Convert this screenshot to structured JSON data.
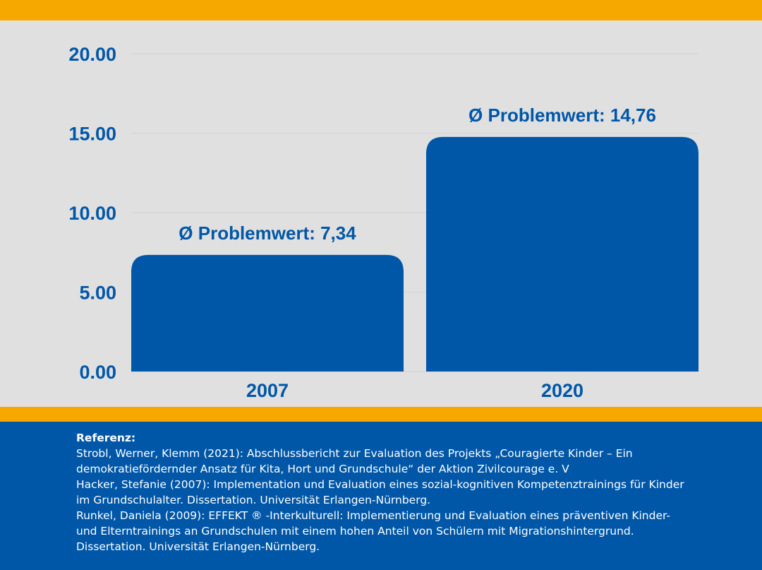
{
  "colors": {
    "accent": "#f7a800",
    "bar": "#0057a8",
    "text_blue": "#0057a8",
    "footer_bg": "#0057a8",
    "background": "#e0e0e0"
  },
  "chart_data": {
    "type": "bar",
    "categories": [
      "2007",
      "2020"
    ],
    "values": [
      7.34,
      14.76
    ],
    "data_labels": [
      "Ø Problemwert: 7,34",
      "Ø Problemwert: 14,76"
    ],
    "y_ticks": [
      "0.00",
      "5.00",
      "10.00",
      "15.00",
      "20.00"
    ],
    "ylim": [
      0,
      20
    ],
    "grid": true,
    "legend": "none"
  },
  "footer": {
    "title": "Referenz:",
    "lines": [
      "Strobl, Werner, Klemm (2021): Abschlussbericht zur Evaluation des Projekts „Couragierte Kinder – Ein demokratiefördernder Ansatz für Kita, Hort und Grundschule“ der Aktion Zivilcourage e. V",
      "Hacker, Stefanie (2007): Implementation und Evaluation eines sozial-kognitiven Kompetenztrainings für Kinder im Grundschulalter. Dissertation. Universität Erlangen-Nürnberg.",
      "Runkel, Daniela (2009): EFFEKT ® -Interkulturell: Implementierung und Evaluation eines präventiven Kinder- und Elterntrainings an Grundschulen mit einem hohen Anteil von Schülern mit Migrationshintergrund. Dissertation. Universität Erlangen-Nürnberg."
    ]
  }
}
